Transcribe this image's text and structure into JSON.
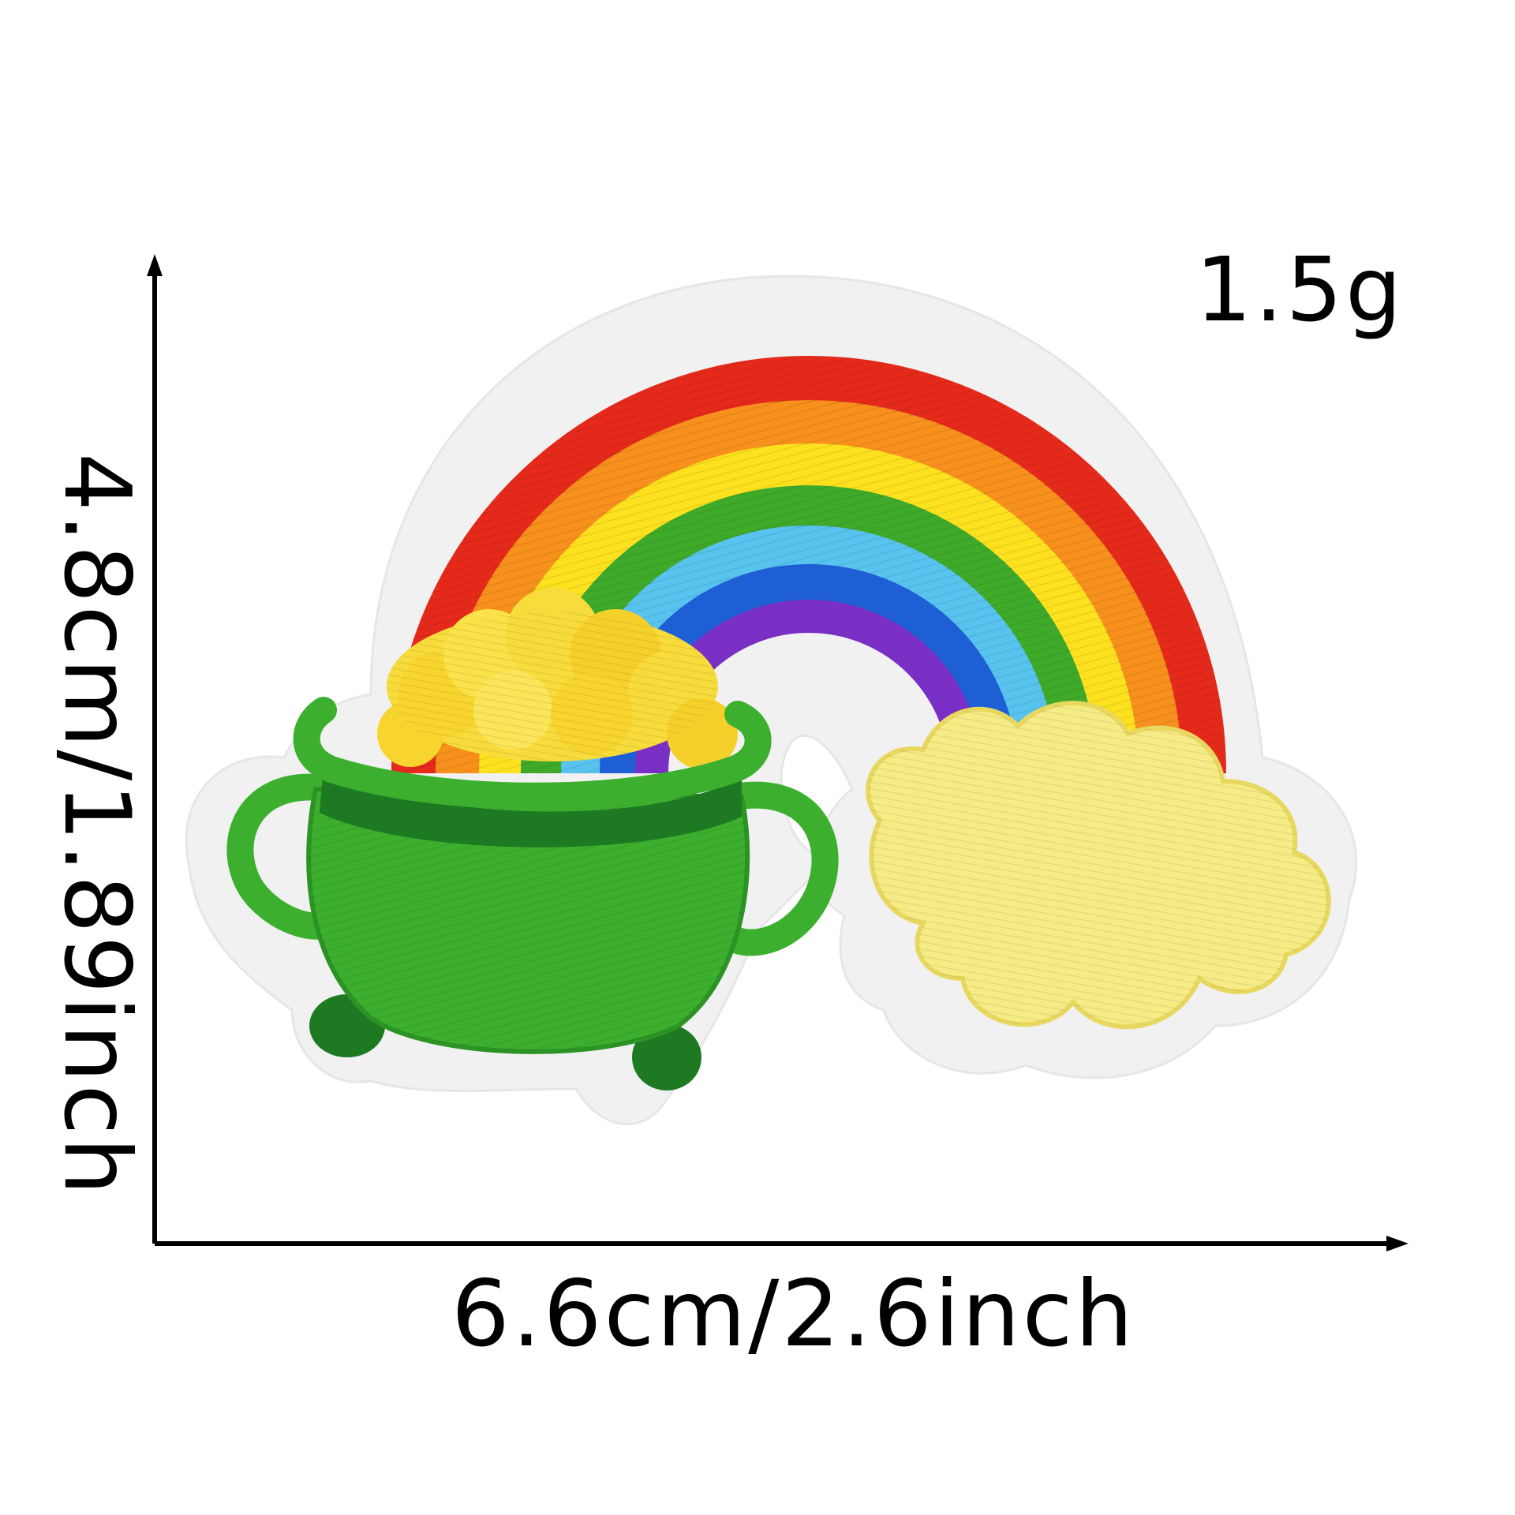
{
  "product": {
    "weight_label": "1.5g",
    "width_label": "6.6cm/2.6inch",
    "height_label": "4.8cm/1.89inch",
    "subject": "rainbow-pot-of-gold-embroidered-patch"
  },
  "colors": {
    "background": "#ffffff",
    "felt_border": "#f1f1f1",
    "rainbow_red": "#e52a1b",
    "rainbow_orange": "#f7901c",
    "rainbow_yellow": "#fde11e",
    "rainbow_green": "#3faa2a",
    "rainbow_lightblue": "#58c3ee",
    "rainbow_blue": "#1f5fd6",
    "rainbow_purple": "#7a2fc4",
    "pot_green": "#3cb02e",
    "pot_darkgreen": "#1d7a22",
    "gold": "#f8dc3c",
    "cloud_yellow": "#f6ec86",
    "measure_line": "#000000"
  }
}
